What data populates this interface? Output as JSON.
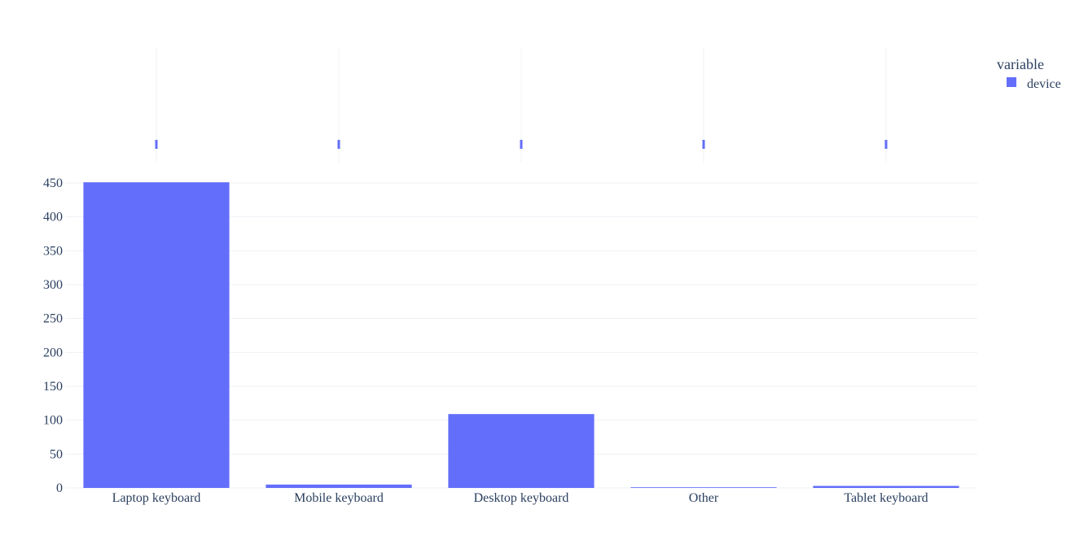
{
  "chart_data": {
    "type": "bar",
    "categories": [
      "Laptop keyboard",
      "Mobile keyboard",
      "Desktop keyboard",
      "Other",
      "Tablet keyboard"
    ],
    "series": [
      {
        "name": "device",
        "color": "#636efa",
        "values": [
          451,
          5,
          109,
          1,
          3
        ]
      }
    ],
    "strip_series": {
      "name": "device",
      "color": "#636efa",
      "values": [
        451,
        5,
        109,
        1,
        3
      ]
    },
    "xlabel": "",
    "ylabel": "",
    "ylim": [
      0,
      450
    ],
    "yticks": [
      0,
      50,
      100,
      150,
      200,
      250,
      300,
      350,
      400,
      450
    ],
    "grid": true,
    "legend": {
      "title": "variable",
      "placement": "top-right"
    }
  }
}
